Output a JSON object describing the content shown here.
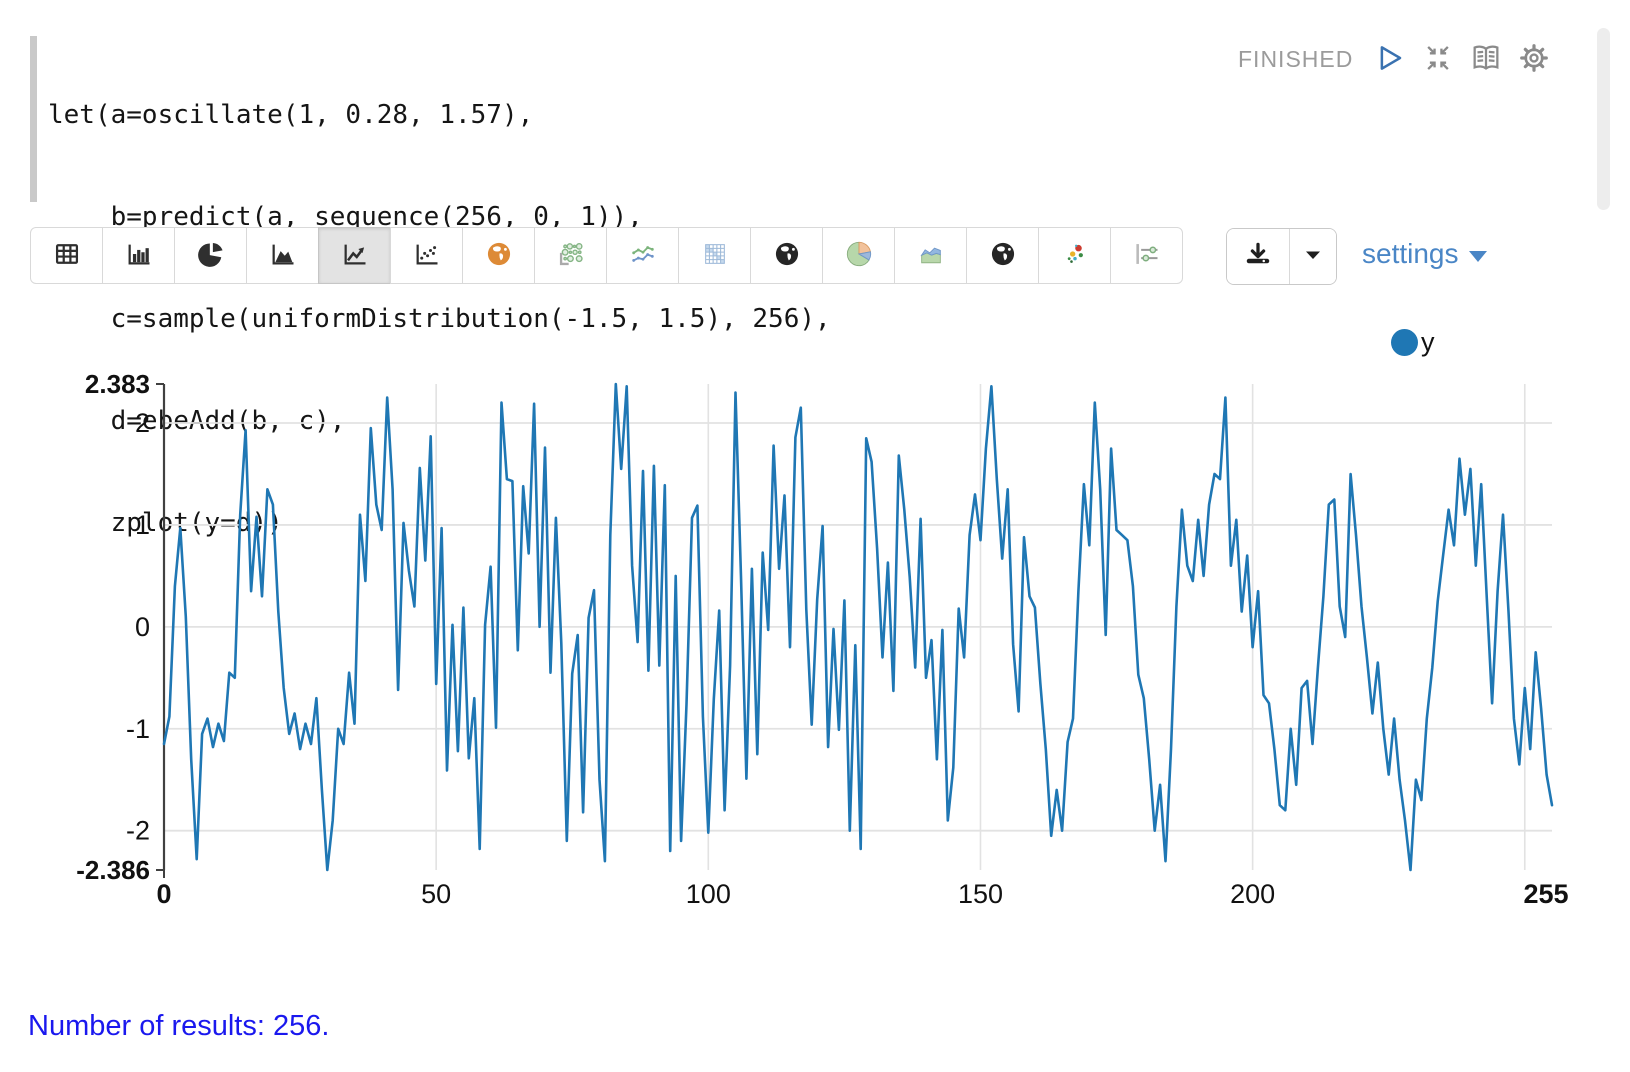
{
  "code": {
    "lines": [
      "let(a=oscillate(1, 0.28, 1.57),",
      "    b=predict(a, sequence(256, 0, 1)),",
      "    c=sample(uniformDistribution(-1.5, 1.5), 256),",
      "    d=ebeAdd(b, c),",
      "    zplot(y=d))"
    ]
  },
  "status": {
    "label": "FINISHED",
    "icons": [
      "play-icon",
      "collapse-icon",
      "book-icon",
      "gear-icon"
    ]
  },
  "toolbar": {
    "items": [
      {
        "name": "table",
        "selected": false
      },
      {
        "name": "bar-chart",
        "selected": false
      },
      {
        "name": "pie-chart",
        "selected": false
      },
      {
        "name": "area-chart",
        "selected": false
      },
      {
        "name": "line-chart",
        "selected": true
      },
      {
        "name": "scatter-chart",
        "selected": false
      },
      {
        "name": "globe-orange",
        "selected": false
      },
      {
        "name": "bubble-chart",
        "selected": false
      },
      {
        "name": "multi-line-chart",
        "selected": false
      },
      {
        "name": "heatmap",
        "selected": false
      },
      {
        "name": "globe-dark",
        "selected": false
      },
      {
        "name": "pie-chart-color",
        "selected": false
      },
      {
        "name": "area-chart-color",
        "selected": false
      },
      {
        "name": "globe-dark-2",
        "selected": false
      },
      {
        "name": "scatter-color",
        "selected": false
      },
      {
        "name": "sliders",
        "selected": false
      }
    ],
    "download_icon": "download-icon",
    "download_caret_icon": "caret-down-icon",
    "settings_label": "settings"
  },
  "legend": {
    "series": [
      {
        "label": "y",
        "color": "#1f77b4"
      }
    ]
  },
  "chart_data": {
    "type": "line",
    "title": "",
    "xlabel": "",
    "ylabel": "",
    "xlim": [
      0,
      255
    ],
    "ylim": [
      -2.386,
      2.383
    ],
    "x_ticks": [
      {
        "value": 0,
        "label": "0",
        "bold": true
      },
      {
        "value": 50,
        "label": "50",
        "bold": false
      },
      {
        "value": 100,
        "label": "100",
        "bold": false
      },
      {
        "value": 150,
        "label": "150",
        "bold": false
      },
      {
        "value": 200,
        "label": "200",
        "bold": false
      },
      {
        "value": 255,
        "label": "255",
        "bold": true
      }
    ],
    "y_ticks": [
      {
        "value": 2.383,
        "label": "2.383",
        "bold": true
      },
      {
        "value": 2,
        "label": "2",
        "bold": false
      },
      {
        "value": 1,
        "label": "1",
        "bold": false
      },
      {
        "value": 0,
        "label": "0",
        "bold": false
      },
      {
        "value": -1,
        "label": "-1",
        "bold": false
      },
      {
        "value": -2,
        "label": "-2",
        "bold": false
      },
      {
        "value": -2.386,
        "label": "-2.386",
        "bold": true
      }
    ],
    "x_gridlines": [
      50,
      100,
      150,
      200,
      250
    ],
    "grid": true,
    "legend_position": "top-right",
    "series": [
      {
        "name": "y",
        "color": "#1f77b4",
        "values": [
          -1.15,
          -0.88,
          0.4,
          0.97,
          0.1,
          -1.3,
          -2.28,
          -1.05,
          -0.9,
          -1.18,
          -0.95,
          -1.12,
          -0.45,
          -0.5,
          1.1,
          1.93,
          0.35,
          1.08,
          0.3,
          1.35,
          1.2,
          0.15,
          -0.6,
          -1.05,
          -0.85,
          -1.2,
          -0.95,
          -1.15,
          -0.7,
          -1.6,
          -2.386,
          -1.9,
          -1.0,
          -1.15,
          -0.45,
          -0.95,
          1.1,
          0.45,
          1.95,
          1.2,
          0.95,
          2.25,
          1.35,
          -0.62,
          1.02,
          0.55,
          0.2,
          1.56,
          0.65,
          1.87,
          -0.56,
          0.97,
          -1.41,
          0.02,
          -1.22,
          0.19,
          -1.29,
          -0.7,
          -2.18,
          0.02,
          0.59,
          -0.99,
          2.2,
          1.45,
          1.43,
          -0.23,
          1.38,
          0.72,
          2.19,
          0.0,
          1.76,
          -0.45,
          1.07,
          -0.16,
          -2.1,
          -0.46,
          -0.08,
          -1.82,
          0.09,
          0.36,
          -1.5,
          -2.3,
          0.9,
          2.383,
          1.55,
          2.36,
          0.6,
          -0.15,
          1.53,
          -0.43,
          1.58,
          -0.38,
          1.39,
          -2.2,
          0.5,
          -2.1,
          -0.76,
          1.07,
          1.19,
          -0.88,
          -2.02,
          -0.71,
          0.16,
          -1.8,
          -0.38,
          2.3,
          0.49,
          -1.49,
          0.57,
          -1.25,
          0.73,
          -0.03,
          1.78,
          0.57,
          1.29,
          -0.2,
          1.86,
          2.15,
          0.17,
          -0.96,
          0.27,
          0.99,
          -1.18,
          -0.02,
          -1.01,
          0.26,
          -2.0,
          -0.18,
          -2.18,
          1.85,
          1.62,
          0.77,
          -0.3,
          0.63,
          -0.63,
          1.68,
          1.15,
          0.49,
          -0.4,
          1.06,
          -0.5,
          -0.13,
          -1.3,
          -0.03,
          -1.9,
          -1.38,
          0.18,
          -0.3,
          0.9,
          1.3,
          0.85,
          1.75,
          2.36,
          1.45,
          0.67,
          1.35,
          -0.17,
          -0.83,
          0.88,
          0.3,
          0.19,
          -0.55,
          -1.2,
          -2.05,
          -1.6,
          -2.0,
          -1.13,
          -0.9,
          0.35,
          1.4,
          0.8,
          2.2,
          1.35,
          -0.08,
          1.75,
          0.95,
          0.9,
          0.85,
          0.4,
          -0.47,
          -0.7,
          -1.3,
          -2.0,
          -1.55,
          -2.3,
          -1.2,
          0.2,
          1.15,
          0.6,
          0.45,
          1.05,
          0.5,
          1.2,
          1.5,
          1.45,
          2.25,
          0.6,
          1.05,
          0.15,
          0.7,
          -0.2,
          0.35,
          -0.67,
          -0.75,
          -1.2,
          -1.75,
          -1.8,
          -1.0,
          -1.55,
          -0.6,
          -0.53,
          -1.15,
          -0.4,
          0.3,
          1.2,
          1.25,
          0.2,
          -0.1,
          1.5,
          0.9,
          0.2,
          -0.3,
          -0.85,
          -0.35,
          -1.0,
          -1.45,
          -0.9,
          -1.5,
          -1.9,
          -2.386,
          -1.5,
          -1.7,
          -0.9,
          -0.4,
          0.25,
          0.7,
          1.15,
          0.8,
          1.65,
          1.1,
          1.55,
          0.6,
          1.4,
          0.3,
          -0.75,
          0.35,
          1.1,
          0.15,
          -0.9,
          -1.35,
          -0.6,
          -1.2,
          -0.25,
          -0.8,
          -1.45,
          -1.75
        ]
      }
    ]
  },
  "footer": {
    "text": "Number of results: 256."
  },
  "colors": {
    "line": "#1f77b4",
    "settings_link": "#4a86c6",
    "status_text": "#9b9b9b",
    "footer_text": "#1a18ee",
    "gridline": "#e2e2e2",
    "axis": "#404040"
  }
}
